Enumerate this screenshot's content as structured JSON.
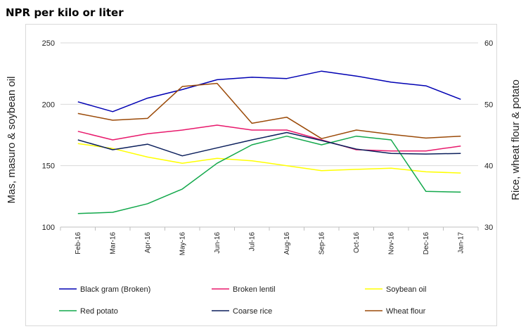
{
  "chart_data": {
    "type": "line",
    "title": "NPR per kilo or liter",
    "xlabel": "",
    "ylabel_left": "Mas, masuro & soybean oil",
    "ylabel_right": "Rice, wheat flour & potato",
    "ylim_left": [
      100,
      250
    ],
    "ylim_right": [
      30,
      60
    ],
    "yticks_left": [
      100,
      150,
      200,
      250
    ],
    "yticks_right": [
      30,
      40,
      50,
      60
    ],
    "categories": [
      "Feb-16",
      "Mar-16",
      "Apr-16",
      "May-16",
      "Jun-16",
      "Jul-16",
      "Aug-16",
      "Sep-16",
      "Oct-16",
      "Nov-16",
      "Dec-16",
      "Jan-17"
    ],
    "series": [
      {
        "name": "Black gram (Broken)",
        "axis": "left",
        "color": "#0000b3",
        "values": [
          202,
          194,
          205,
          212,
          220,
          222,
          221,
          227,
          223,
          218,
          215,
          204
        ]
      },
      {
        "name": "Broken lentil",
        "axis": "left",
        "color": "#e8196c",
        "values": [
          178,
          171,
          176,
          179,
          183,
          179,
          179,
          171,
          163,
          162,
          162,
          166
        ]
      },
      {
        "name": "Soybean oil",
        "axis": "left",
        "color": "#ffff00",
        "values": [
          168,
          164,
          157,
          152,
          156,
          154,
          150,
          146,
          147,
          148,
          145,
          144
        ]
      },
      {
        "name": "Red potato",
        "axis": "right",
        "color": "#12a84b",
        "values": [
          32.2,
          32.4,
          33.8,
          36.2,
          40.4,
          43.4,
          44.8,
          43.4,
          44.8,
          44.2,
          35.8,
          35.7
        ]
      },
      {
        "name": "Coarse rice",
        "axis": "right",
        "color": "#0b1f5c",
        "values": [
          44.2,
          42.6,
          43.5,
          41.6,
          42.9,
          44.2,
          45.4,
          44.1,
          42.7,
          42.0,
          41.9,
          42.0
        ]
      },
      {
        "name": "Wheat flour",
        "axis": "right",
        "color": "#9b4a08",
        "values": [
          48.5,
          47.4,
          47.7,
          52.9,
          53.4,
          46.9,
          47.9,
          44.4,
          45.8,
          45.1,
          44.5,
          44.8
        ]
      }
    ]
  }
}
